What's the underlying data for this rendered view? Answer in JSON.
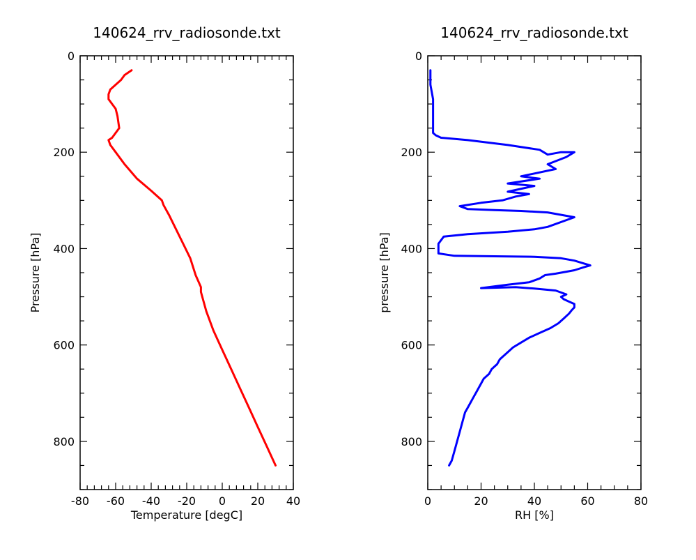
{
  "chart_data": [
    {
      "type": "line",
      "title": "140624_rrv_radiosonde.txt",
      "xlabel": "Temperature [degC]",
      "ylabel": "Pressure [hPa]",
      "xlim": [
        -80,
        40
      ],
      "ylim": [
        900,
        0
      ],
      "y_inverted": true,
      "x_ticks": [
        -80,
        -60,
        -40,
        -20,
        0,
        20,
        40
      ],
      "x_tick_labels": [
        "-80",
        "-60",
        "-40",
        "-20",
        "0",
        "20",
        "40"
      ],
      "y_ticks": [
        0,
        200,
        400,
        600,
        800
      ],
      "y_tick_labels": [
        "0",
        "200",
        "400",
        "600",
        "800"
      ],
      "grid": false,
      "line_color": "#ff0000",
      "series": [
        {
          "x": [
            30,
            25,
            20,
            15,
            10,
            5,
            0,
            -5,
            -9,
            -12,
            -12,
            -15,
            -18,
            -22,
            -26,
            -30,
            -33,
            -34,
            -40,
            -48,
            -55,
            -60,
            -63,
            -64,
            -62,
            -58,
            -59,
            -60,
            -62,
            -64,
            -64,
            -63,
            -60,
            -57,
            -55,
            -51
          ],
          "y": [
            850,
            810,
            770,
            730,
            690,
            650,
            610,
            570,
            530,
            490,
            480,
            455,
            420,
            390,
            360,
            330,
            310,
            300,
            280,
            255,
            225,
            200,
            185,
            175,
            170,
            150,
            125,
            110,
            100,
            90,
            80,
            70,
            60,
            50,
            40,
            30
          ]
        }
      ]
    },
    {
      "type": "line",
      "title": "140624_rrv_radiosonde.txt",
      "xlabel": "RH [%]",
      "ylabel": "pressure [hPa]",
      "xlim": [
        0,
        80
      ],
      "ylim": [
        900,
        0
      ],
      "y_inverted": true,
      "x_ticks": [
        0,
        20,
        40,
        60,
        80
      ],
      "x_tick_labels": [
        "0",
        "20",
        "40",
        "60",
        "80"
      ],
      "y_ticks": [
        0,
        200,
        400,
        600,
        800
      ],
      "y_tick_labels": [
        "0",
        "200",
        "400",
        "600",
        "800"
      ],
      "grid": false,
      "line_color": "#0000ff",
      "series": [
        {
          "x": [
            8,
            9,
            10,
            11,
            12,
            13,
            14,
            15,
            16,
            17,
            18,
            19,
            20,
            21,
            22,
            23,
            24,
            25,
            26,
            27,
            28,
            30,
            32,
            35,
            38,
            42,
            46,
            49,
            51,
            53,
            54,
            55,
            55,
            53,
            51,
            50,
            52,
            48,
            40,
            33,
            20,
            30,
            38,
            42,
            44,
            48,
            52,
            55,
            59,
            61,
            58,
            55,
            50,
            40,
            25,
            10,
            4,
            4,
            6,
            15,
            30,
            40,
            45,
            55,
            45,
            35,
            25,
            15,
            12,
            20,
            28,
            33,
            38,
            30,
            40,
            30,
            42,
            35,
            48,
            45,
            52,
            55,
            50,
            45,
            42,
            30,
            15,
            5,
            3,
            2,
            2,
            2,
            1,
            1
          ],
          "y": [
            850,
            840,
            820,
            800,
            780,
            760,
            740,
            730,
            720,
            710,
            700,
            690,
            680,
            670,
            665,
            660,
            650,
            645,
            640,
            630,
            625,
            615,
            605,
            595,
            585,
            575,
            565,
            555,
            545,
            535,
            528,
            522,
            515,
            510,
            505,
            500,
            495,
            487,
            483,
            480,
            482,
            475,
            470,
            462,
            455,
            452,
            448,
            445,
            438,
            435,
            430,
            425,
            420,
            417,
            416,
            415,
            410,
            390,
            375,
            370,
            365,
            360,
            355,
            335,
            325,
            322,
            320,
            318,
            312,
            305,
            300,
            292,
            287,
            282,
            270,
            265,
            255,
            250,
            235,
            225,
            210,
            200,
            200,
            205,
            195,
            185,
            175,
            170,
            165,
            160,
            140,
            90,
            60,
            30
          ]
        }
      ]
    }
  ]
}
